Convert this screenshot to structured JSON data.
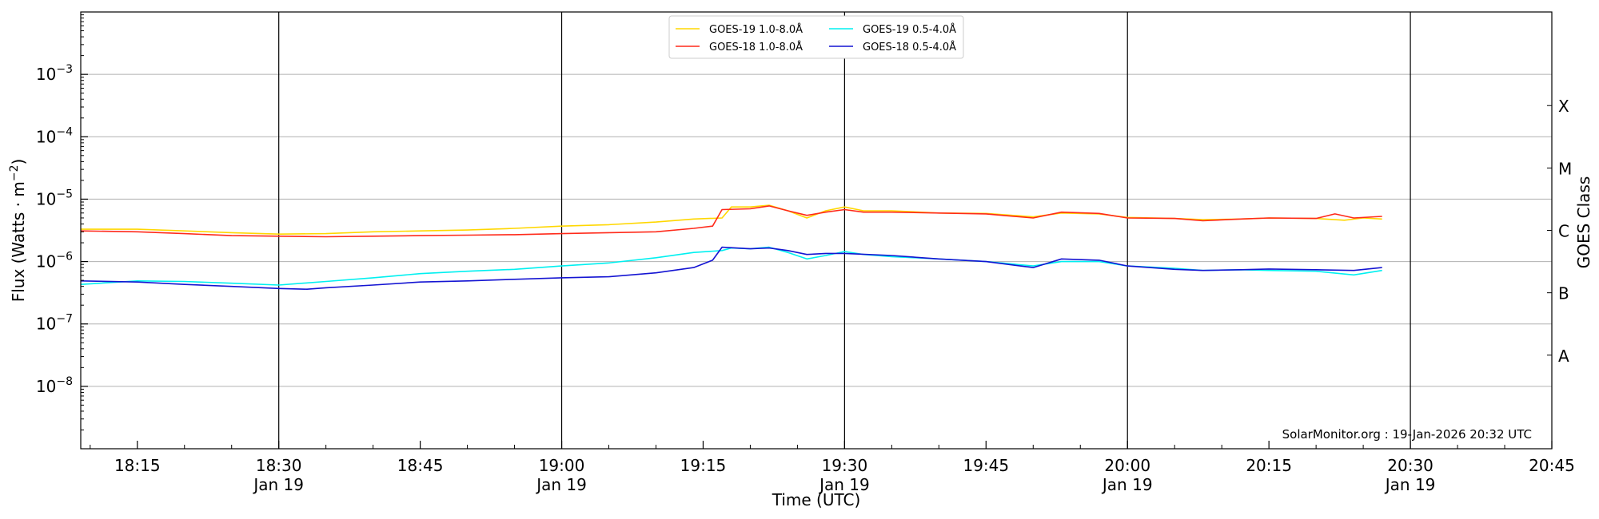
{
  "chart_data": {
    "type": "line",
    "xlabel": "Time (UTC)",
    "ylabel": "Flux (Watts · m",
    "ylabel_sup": "−2",
    "ylabel_close": ")",
    "y2label": "GOES Class",
    "yscale": "log",
    "xlim": [
      "18:09",
      "20:45"
    ],
    "ylim": [
      1e-09,
      0.01
    ],
    "grid": "horizontal at each decade",
    "x_ticks": [
      {
        "time": "18:15",
        "label": "18:15",
        "date": ""
      },
      {
        "time": "18:30",
        "label": "18:30",
        "date": "Jan 19"
      },
      {
        "time": "18:45",
        "label": "18:45",
        "date": ""
      },
      {
        "time": "19:00",
        "label": "19:00",
        "date": "Jan 19"
      },
      {
        "time": "19:15",
        "label": "19:15",
        "date": ""
      },
      {
        "time": "19:30",
        "label": "19:30",
        "date": "Jan 19"
      },
      {
        "time": "19:45",
        "label": "19:45",
        "date": ""
      },
      {
        "time": "20:00",
        "label": "20:00",
        "date": "Jan 19"
      },
      {
        "time": "20:15",
        "label": "20:15",
        "date": ""
      },
      {
        "time": "20:30",
        "label": "20:30",
        "date": "Jan 19"
      },
      {
        "time": "20:45",
        "label": "20:45",
        "date": ""
      }
    ],
    "vertical_lines": [
      "18:30",
      "19:00",
      "19:30",
      "20:00",
      "20:30"
    ],
    "y_ticks": [
      {
        "value": 1e-08,
        "base": "10",
        "exp": "−8"
      },
      {
        "value": 1e-07,
        "base": "10",
        "exp": "−7"
      },
      {
        "value": 1e-06,
        "base": "10",
        "exp": "−6"
      },
      {
        "value": 1e-05,
        "base": "10",
        "exp": "−5"
      },
      {
        "value": 0.0001,
        "base": "10",
        "exp": "−4"
      },
      {
        "value": 0.001,
        "base": "10",
        "exp": "−3"
      }
    ],
    "goes_classes": [
      {
        "label": "A",
        "value": 3.16e-08
      },
      {
        "label": "B",
        "value": 3.16e-07
      },
      {
        "label": "C",
        "value": 3.16e-06
      },
      {
        "label": "M",
        "value": 3.16e-05
      },
      {
        "label": "X",
        "value": 0.000316
      }
    ],
    "legend_position": "top-center",
    "credit": "SolarMonitor.org : 19-Jan-2026 20:32 UTC",
    "series": [
      {
        "name": "GOES-19 1.0-8.0Å",
        "color": "#ffd700",
        "points": [
          [
            "18:09",
            3.3e-06
          ],
          [
            "18:15",
            3.3e-06
          ],
          [
            "18:20",
            3.1e-06
          ],
          [
            "18:25",
            2.9e-06
          ],
          [
            "18:30",
            2.75e-06
          ],
          [
            "18:35",
            2.8e-06
          ],
          [
            "18:40",
            3e-06
          ],
          [
            "18:45",
            3.1e-06
          ],
          [
            "18:50",
            3.2e-06
          ],
          [
            "18:55",
            3.4e-06
          ],
          [
            "19:00",
            3.7e-06
          ],
          [
            "19:05",
            3.9e-06
          ],
          [
            "19:10",
            4.3e-06
          ],
          [
            "19:14",
            4.8e-06
          ],
          [
            "19:17",
            5e-06
          ],
          [
            "19:18",
            7.5e-06
          ],
          [
            "19:20",
            7.5e-06
          ],
          [
            "19:22",
            8e-06
          ],
          [
            "19:24",
            6.5e-06
          ],
          [
            "19:26",
            5e-06
          ],
          [
            "19:28",
            6.5e-06
          ],
          [
            "19:30",
            7.5e-06
          ],
          [
            "19:32",
            6.5e-06
          ],
          [
            "19:35",
            6.5e-06
          ],
          [
            "19:40",
            6e-06
          ],
          [
            "19:45",
            5.9e-06
          ],
          [
            "19:50",
            5.2e-06
          ],
          [
            "19:53",
            6e-06
          ],
          [
            "19:57",
            5.8e-06
          ],
          [
            "20:00",
            5.1e-06
          ],
          [
            "20:05",
            4.9e-06
          ],
          [
            "20:08",
            4.7e-06
          ],
          [
            "20:12",
            4.8e-06
          ],
          [
            "20:15",
            5e-06
          ],
          [
            "20:20",
            4.9e-06
          ],
          [
            "20:23",
            4.6e-06
          ],
          [
            "20:25",
            5e-06
          ],
          [
            "20:27",
            4.8e-06
          ]
        ]
      },
      {
        "name": "GOES-18 1.0-8.0Å",
        "color": "#ff2a1a",
        "points": [
          [
            "18:09",
            3.1e-06
          ],
          [
            "18:15",
            3e-06
          ],
          [
            "18:20",
            2.8e-06
          ],
          [
            "18:25",
            2.6e-06
          ],
          [
            "18:30",
            2.55e-06
          ],
          [
            "18:35",
            2.5e-06
          ],
          [
            "18:40",
            2.55e-06
          ],
          [
            "18:45",
            2.6e-06
          ],
          [
            "18:50",
            2.65e-06
          ],
          [
            "18:55",
            2.7e-06
          ],
          [
            "19:00",
            2.8e-06
          ],
          [
            "19:05",
            2.9e-06
          ],
          [
            "19:10",
            3e-06
          ],
          [
            "19:14",
            3.4e-06
          ],
          [
            "19:16",
            3.7e-06
          ],
          [
            "19:17",
            6.8e-06
          ],
          [
            "19:20",
            7e-06
          ],
          [
            "19:22",
            7.8e-06
          ],
          [
            "19:24",
            6.5e-06
          ],
          [
            "19:26",
            5.5e-06
          ],
          [
            "19:28",
            6.2e-06
          ],
          [
            "19:30",
            6.8e-06
          ],
          [
            "19:32",
            6.2e-06
          ],
          [
            "19:35",
            6.2e-06
          ],
          [
            "19:40",
            6e-06
          ],
          [
            "19:45",
            5.8e-06
          ],
          [
            "19:50",
            5e-06
          ],
          [
            "19:53",
            6.2e-06
          ],
          [
            "19:57",
            5.9e-06
          ],
          [
            "20:00",
            5e-06
          ],
          [
            "20:05",
            4.9e-06
          ],
          [
            "20:08",
            4.5e-06
          ],
          [
            "20:12",
            4.8e-06
          ],
          [
            "20:15",
            5e-06
          ],
          [
            "20:20",
            4.9e-06
          ],
          [
            "20:22",
            5.8e-06
          ],
          [
            "20:24",
            5e-06
          ],
          [
            "20:27",
            5.3e-06
          ]
        ]
      },
      {
        "name": "GOES-19 0.5-4.0Å",
        "color": "#00f0f0",
        "points": [
          [
            "18:09",
            4.3e-07
          ],
          [
            "18:15",
            4.9e-07
          ],
          [
            "18:20",
            4.8e-07
          ],
          [
            "18:25",
            4.5e-07
          ],
          [
            "18:30",
            4.2e-07
          ],
          [
            "18:35",
            4.8e-07
          ],
          [
            "18:40",
            5.5e-07
          ],
          [
            "18:45",
            6.4e-07
          ],
          [
            "18:50",
            7e-07
          ],
          [
            "18:55",
            7.5e-07
          ],
          [
            "19:00",
            8.5e-07
          ],
          [
            "19:05",
            9.5e-07
          ],
          [
            "19:10",
            1.15e-06
          ],
          [
            "19:14",
            1.4e-06
          ],
          [
            "19:17",
            1.5e-06
          ],
          [
            "19:18",
            1.65e-06
          ],
          [
            "19:20",
            1.6e-06
          ],
          [
            "19:22",
            1.7e-06
          ],
          [
            "19:24",
            1.4e-06
          ],
          [
            "19:26",
            1.1e-06
          ],
          [
            "19:28",
            1.25e-06
          ],
          [
            "19:30",
            1.45e-06
          ],
          [
            "19:32",
            1.3e-06
          ],
          [
            "19:35",
            1.2e-06
          ],
          [
            "19:40",
            1.1e-06
          ],
          [
            "19:45",
            1e-06
          ],
          [
            "19:50",
            8.5e-07
          ],
          [
            "19:53",
            1e-06
          ],
          [
            "19:57",
            1e-06
          ],
          [
            "20:00",
            8.5e-07
          ],
          [
            "20:05",
            7.8e-07
          ],
          [
            "20:08",
            7.2e-07
          ],
          [
            "20:12",
            7.4e-07
          ],
          [
            "20:15",
            7.2e-07
          ],
          [
            "20:20",
            7e-07
          ],
          [
            "20:24",
            6.1e-07
          ],
          [
            "20:27",
            7.2e-07
          ]
        ]
      },
      {
        "name": "GOES-18 0.5-4.0Å",
        "color": "#1414d2",
        "points": [
          [
            "18:09",
            4.9e-07
          ],
          [
            "18:15",
            4.7e-07
          ],
          [
            "18:20",
            4.3e-07
          ],
          [
            "18:25",
            4e-07
          ],
          [
            "18:30",
            3.7e-07
          ],
          [
            "18:33",
            3.6e-07
          ],
          [
            "18:35",
            3.8e-07
          ],
          [
            "18:40",
            4.2e-07
          ],
          [
            "18:45",
            4.7e-07
          ],
          [
            "18:50",
            4.9e-07
          ],
          [
            "18:55",
            5.2e-07
          ],
          [
            "19:00",
            5.5e-07
          ],
          [
            "19:05",
            5.7e-07
          ],
          [
            "19:10",
            6.6e-07
          ],
          [
            "19:14",
            8e-07
          ],
          [
            "19:16",
            1.05e-06
          ],
          [
            "19:17",
            1.7e-06
          ],
          [
            "19:20",
            1.6e-06
          ],
          [
            "19:22",
            1.65e-06
          ],
          [
            "19:24",
            1.5e-06
          ],
          [
            "19:26",
            1.3e-06
          ],
          [
            "19:28",
            1.35e-06
          ],
          [
            "19:30",
            1.35e-06
          ],
          [
            "19:35",
            1.25e-06
          ],
          [
            "19:40",
            1.1e-06
          ],
          [
            "19:45",
            1e-06
          ],
          [
            "19:50",
            8e-07
          ],
          [
            "19:53",
            1.1e-06
          ],
          [
            "19:57",
            1.05e-06
          ],
          [
            "20:00",
            8.5e-07
          ],
          [
            "20:05",
            7.5e-07
          ],
          [
            "20:08",
            7.2e-07
          ],
          [
            "20:12",
            7.4e-07
          ],
          [
            "20:15",
            7.6e-07
          ],
          [
            "20:20",
            7.4e-07
          ],
          [
            "20:24",
            7.2e-07
          ],
          [
            "20:27",
            8e-07
          ]
        ]
      }
    ]
  }
}
